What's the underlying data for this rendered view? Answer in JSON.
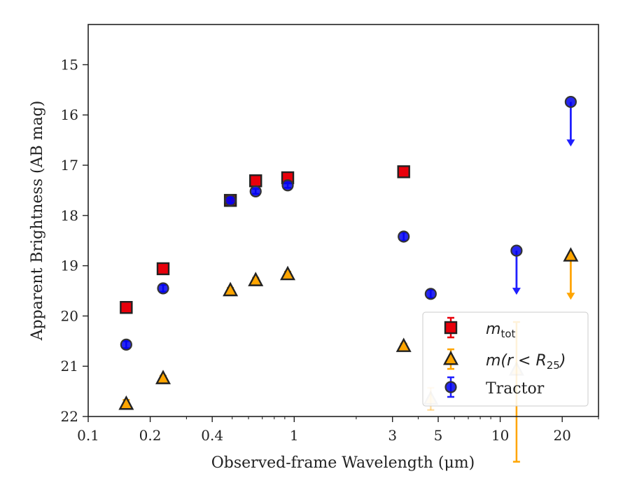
{
  "chart_data": {
    "type": "scatter",
    "xlabel_prefix": "Observed-frame Wavelength (",
    "xlabel_unit": "μm",
    "xlabel_suffix": ")",
    "ylabel": "Apparent Brightness (AB mag)",
    "x_scale": "log",
    "xlim": [
      0.1,
      30
    ],
    "ylim": [
      22,
      14.2
    ],
    "y_inverted": true,
    "grid": false,
    "legend_position": "lower-right",
    "x_ticks": [
      {
        "value": 0.1,
        "label": "0.1"
      },
      {
        "value": 0.2,
        "label": "0.2"
      },
      {
        "value": 0.4,
        "label": "0.4"
      },
      {
        "value": 1,
        "label": "1"
      },
      {
        "value": 3,
        "label": "3"
      },
      {
        "value": 5,
        "label": "5"
      },
      {
        "value": 10,
        "label": "10"
      },
      {
        "value": 20,
        "label": "20"
      }
    ],
    "y_ticks": [
      {
        "value": 15,
        "label": "15"
      },
      {
        "value": 16,
        "label": "16"
      },
      {
        "value": 17,
        "label": "17"
      },
      {
        "value": 18,
        "label": "18"
      },
      {
        "value": 19,
        "label": "19"
      },
      {
        "value": 20,
        "label": "20"
      },
      {
        "value": 21,
        "label": "21"
      },
      {
        "value": 22,
        "label": "22"
      }
    ],
    "series": [
      {
        "key": "mtot",
        "legend_main": "m",
        "legend_sub": "tot",
        "marker": "square",
        "color": "#e8000b",
        "points": [
          {
            "x": 0.153,
            "y": 19.83,
            "err": 0.06
          },
          {
            "x": 0.231,
            "y": 19.06,
            "err": 0.06
          },
          {
            "x": 0.49,
            "y": 17.7,
            "err": 0.05
          },
          {
            "x": 0.65,
            "y": 17.31,
            "err": 0.05
          },
          {
            "x": 0.93,
            "y": 17.25,
            "err": 0.05
          },
          {
            "x": 3.4,
            "y": 17.13,
            "err": 0.05
          }
        ]
      },
      {
        "key": "mr25",
        "legend_main": "m(r < R",
        "legend_sub": "25",
        "legend_end": ")",
        "marker": "triangle",
        "color": "#ffa500",
        "points": [
          {
            "x": 0.153,
            "y": 21.75,
            "err": 0.08
          },
          {
            "x": 0.231,
            "y": 21.24,
            "err": 0.05
          },
          {
            "x": 0.49,
            "y": 19.49,
            "err": 0.05
          },
          {
            "x": 0.65,
            "y": 19.29,
            "err": 0.05
          },
          {
            "x": 0.93,
            "y": 19.17,
            "err": 0.05
          },
          {
            "x": 3.4,
            "y": 20.6,
            "err": 0.05
          },
          {
            "x": 4.6,
            "y": 21.65,
            "err": 0.22,
            "faded": true
          },
          {
            "x": 12.0,
            "y": 21.07,
            "err_up": 1.83,
            "err_down": 0.95,
            "faded": true
          },
          {
            "x": 22.0,
            "y": 18.8,
            "upper_limit": true,
            "arrow_to": 19.65
          }
        ]
      },
      {
        "key": "tractor",
        "legend_main": "Tractor",
        "marker": "circle",
        "color": "#0000ee",
        "points": [
          {
            "x": 0.153,
            "y": 20.57,
            "err": 0.07
          },
          {
            "x": 0.231,
            "y": 19.45,
            "err": 0.07
          },
          {
            "x": 0.49,
            "y": 17.7,
            "err": 0.05
          },
          {
            "x": 0.65,
            "y": 17.52,
            "err": 0.05
          },
          {
            "x": 0.93,
            "y": 17.4,
            "err": 0.05
          },
          {
            "x": 3.4,
            "y": 18.42,
            "err": 0.08
          },
          {
            "x": 4.6,
            "y": 19.56,
            "err": 0.08
          },
          {
            "x": 12.0,
            "y": 18.7,
            "upper_limit": true,
            "arrow_to": 19.55
          },
          {
            "x": 22.0,
            "y": 15.74,
            "upper_limit": true,
            "arrow_to": 16.6
          }
        ]
      }
    ]
  }
}
